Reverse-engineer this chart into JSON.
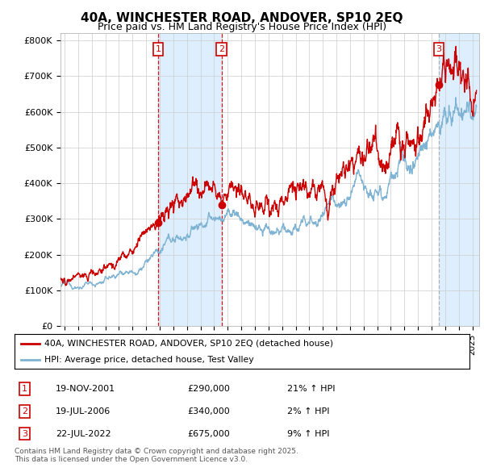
{
  "title": "40A, WINCHESTER ROAD, ANDOVER, SP10 2EQ",
  "subtitle": "Price paid vs. HM Land Registry's House Price Index (HPI)",
  "ylabel_ticks": [
    "£0",
    "£100K",
    "£200K",
    "£300K",
    "£400K",
    "£500K",
    "£600K",
    "£700K",
    "£800K"
  ],
  "ytick_values": [
    0,
    100000,
    200000,
    300000,
    400000,
    500000,
    600000,
    700000,
    800000
  ],
  "ylim": [
    0,
    820000
  ],
  "xlim_start": 1994.7,
  "xlim_end": 2025.5,
  "red_color": "#cc0000",
  "blue_color": "#7fb3d3",
  "sale_color_red": "#cc0000",
  "sale_color_grey": "#aaaaaa",
  "purchase_dates": [
    2001.88,
    2006.54,
    2022.54
  ],
  "purchase_prices": [
    290000,
    340000,
    675000
  ],
  "purchase_labels": [
    "1",
    "2",
    "3"
  ],
  "shaded_color": "#ddeeff",
  "legend_red": "40A, WINCHESTER ROAD, ANDOVER, SP10 2EQ (detached house)",
  "legend_blue": "HPI: Average price, detached house, Test Valley",
  "table_data": [
    [
      "1",
      "19-NOV-2001",
      "£290,000",
      "21% ↑ HPI"
    ],
    [
      "2",
      "19-JUL-2006",
      "£340,000",
      "2% ↑ HPI"
    ],
    [
      "3",
      "22-JUL-2022",
      "£675,000",
      "9% ↑ HPI"
    ]
  ],
  "footnote": "Contains HM Land Registry data © Crown copyright and database right 2025.\nThis data is licensed under the Open Government Licence v3.0.",
  "background_color": "#ffffff",
  "grid_color": "#cccccc"
}
